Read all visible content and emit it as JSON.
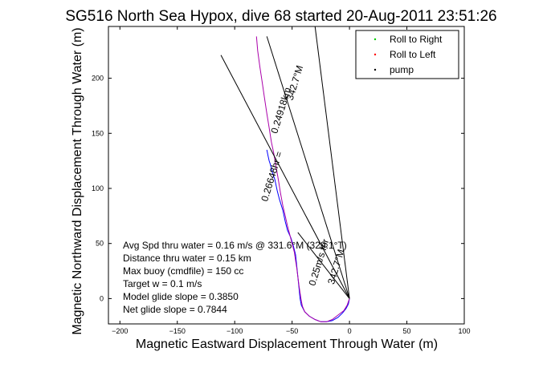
{
  "figure": {
    "title": "SG516 North Sea Hypox, dive 68 started 20-Aug-2011 23:51:26"
  },
  "chart_data": {
    "type": "line",
    "title": "SG516 North Sea Hypox, dive 68 started 20-Aug-2011 23:51:26",
    "xlabel": "Magnetic Eastward Displacement Through Water (m)",
    "ylabel": "Magnetic Northward Displacement Through Water (m)",
    "xlim": [
      -210,
      100
    ],
    "ylim": [
      -23,
      247
    ],
    "xticks": [
      -200,
      -150,
      -100,
      -50,
      0,
      50,
      100
    ],
    "yticks": [
      0,
      50,
      100,
      150,
      200
    ],
    "xtick_labels": [
      "−200",
      "−150",
      "−100",
      "−50",
      "0",
      "50",
      "100"
    ],
    "ytick_labels": [
      "0",
      "50",
      "100",
      "150",
      "200"
    ],
    "grid": false,
    "legend_position": "top-right",
    "legend": [
      {
        "label": "Roll to Right",
        "color": "#00cc00"
      },
      {
        "label": "Roll to Left",
        "color": "#ff0000"
      },
      {
        "label": "pump",
        "color": "#000000"
      }
    ],
    "series": [
      {
        "color": "#0000ff",
        "x": [
          0,
          -1,
          -3,
          -6,
          -10,
          -15,
          -20,
          -25,
          -30,
          -35,
          -39,
          -42,
          -43,
          -44,
          -45,
          -46,
          -47,
          -49,
          -51,
          -54,
          -56,
          -58,
          -61,
          -63,
          -65,
          -67,
          -68,
          -69,
          -70,
          -71,
          -72
        ],
        "y": [
          0,
          -5,
          -9,
          -13,
          -17,
          -20,
          -21,
          -21,
          -19,
          -16,
          -12,
          -6,
          0,
          10,
          20,
          30,
          40,
          48,
          55,
          62,
          70,
          80,
          90,
          98,
          108,
          114,
          118,
          122,
          125,
          130,
          135
        ]
      },
      {
        "color": "#aa00aa",
        "x": [
          0,
          -2,
          -5,
          -10,
          -15,
          -20,
          -25,
          -30,
          -35,
          -39,
          -41,
          -42,
          -43,
          -44,
          -45,
          -46,
          -47,
          -48,
          -50,
          -52,
          -54,
          -56,
          -58,
          -60,
          -62,
          -64,
          -65,
          -66,
          -68,
          -70,
          -72,
          -74,
          -76,
          -78,
          -80,
          -81
        ],
        "y": [
          0,
          -6,
          -11,
          -15,
          -19,
          -21,
          -21,
          -19,
          -16,
          -12,
          -7,
          -2,
          5,
          12,
          20,
          28,
          35,
          42,
          50,
          58,
          66,
          75,
          84,
          95,
          108,
          120,
          126,
          132,
          142,
          155,
          168,
          182,
          196,
          210,
          225,
          238
        ]
      }
    ],
    "vector_lines": [
      {
        "color": "#000000",
        "x": [
          0,
          -112
        ],
        "y": [
          0,
          221
        ]
      },
      {
        "color": "#000000",
        "x": [
          0,
          -30
        ],
        "y": [
          0,
          247
        ]
      },
      {
        "color": "#000000",
        "x": [
          0,
          -72
        ],
        "y": [
          0,
          238
        ]
      },
      {
        "color": "#000000",
        "x": [
          0,
          -45
        ],
        "y": [
          0,
          60
        ]
      }
    ],
    "annotations": {
      "rotated": [
        {
          "text": "342.7°M",
          "x": -45,
          "y": 195,
          "angle": -73
        },
        {
          "text": "0.24918km",
          "x": -57,
          "y": 170,
          "angle": -73
        },
        {
          "text": "0.26648hr =",
          "x": -65,
          "y": 110,
          "angle": -73
        },
        {
          "text": "0.25m/s for",
          "x": -24,
          "y": 32,
          "angle": -73
        },
        {
          "text": "342.7°M",
          "x": -9,
          "y": 28,
          "angle": -73
        }
      ],
      "summary": [
        "Avg Spd thru water = 0.16 m/s @ 331.6°M (329.1°T)",
        "Distance thru water = 0.15 km",
        "Max buoy (cmdfile) = 150 cc",
        "Target w = 0.1 m/s",
        "Model glide slope = 0.3850",
        "Net glide slope = 0.7844"
      ]
    }
  }
}
